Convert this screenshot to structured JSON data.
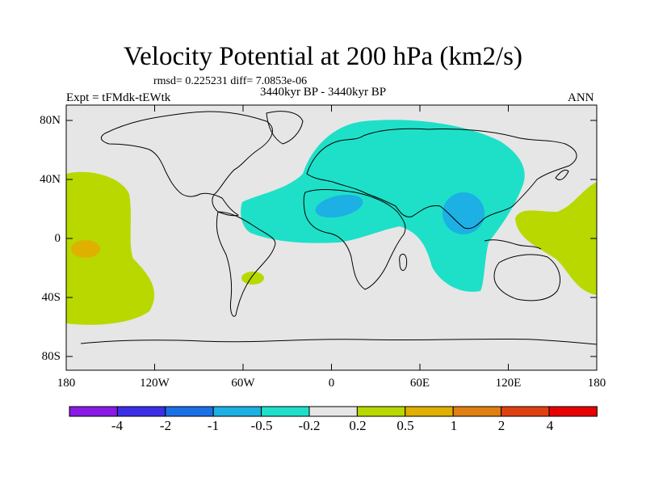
{
  "title": "Velocity Potential at 200 hPa (km2/s)",
  "rmsd_line": "rmsd= 0.225231 diff= 7.0853e-06",
  "experiment": "Expt = tFMdk-tEWtk",
  "period": "3440kyr BP - 3440kyr BP",
  "season": "ANN",
  "y_axis": {
    "labels": [
      "80N",
      "40N",
      "0",
      "40S",
      "80S"
    ]
  },
  "x_axis": {
    "labels": [
      "180",
      "120W",
      "60W",
      "0",
      "60E",
      "120E",
      "180"
    ]
  },
  "colorbar": {
    "colors": [
      "#8a1ae6",
      "#3c2ee8",
      "#1a6fe6",
      "#1cb0e4",
      "#1ee0c8",
      "#e6e6e6",
      "#b8d800",
      "#e0b000",
      "#e08010",
      "#e04010",
      "#e60000"
    ],
    "labels": [
      "-4",
      "-2",
      "-1",
      "-0.5",
      "-0.2",
      "0.2",
      "0.5",
      "1",
      "2",
      "4"
    ]
  },
  "colors": {
    "background": "#e6e6e6",
    "neg_weak": "#1ee0c8",
    "neg_mod": "#1cb0e4",
    "pos_weak": "#b8d800",
    "pos_mod": "#e0b000"
  }
}
